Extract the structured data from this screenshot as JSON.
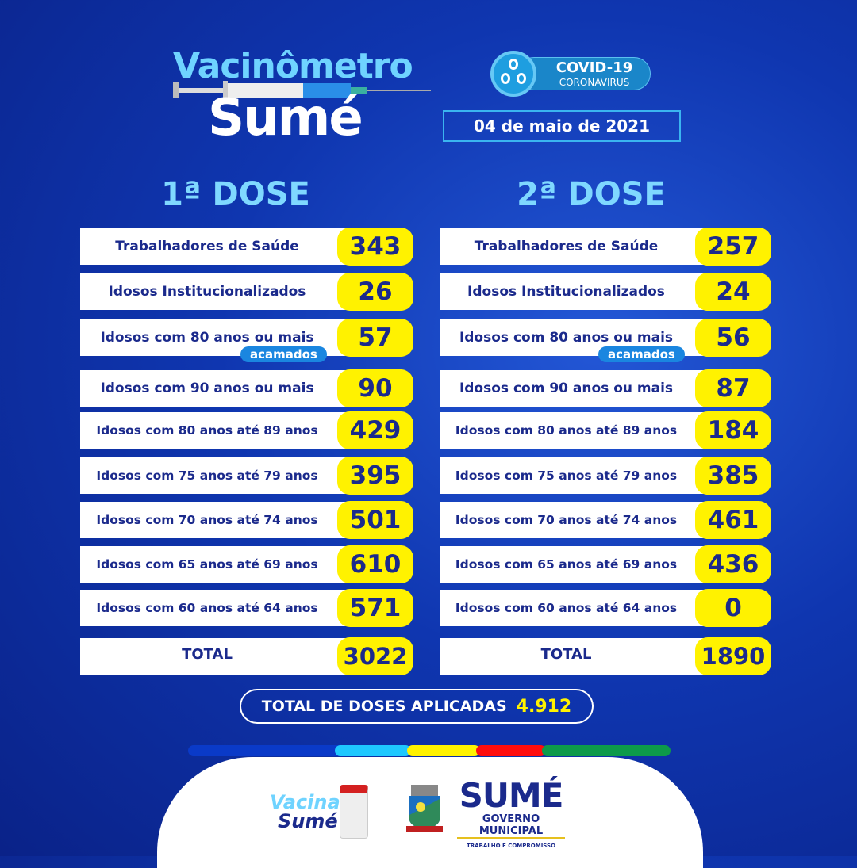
{
  "header": {
    "title_line1": "Vacinômetro",
    "title_line2": "Sumé",
    "badge_title": "COVID-19",
    "badge_subtitle": "CORONAVIRUS",
    "date": "04 de maio de 2021"
  },
  "colors": {
    "background": "#0f36b0",
    "row_text": "#1b2a8c",
    "value_pill": "#fff200",
    "heading": "#7fd8ff",
    "tag": "#1a86e0"
  },
  "dose1": {
    "heading": "1ª DOSE",
    "rows": [
      {
        "label": "Trabalhadores de Saúde",
        "value": "343"
      },
      {
        "label": "Idosos Institucionalizados",
        "value": "26"
      },
      {
        "label": "Idosos com 80 anos ou mais",
        "value": "57",
        "tag": "acamados"
      },
      {
        "label": "Idosos com 90 anos ou mais",
        "value": "90"
      },
      {
        "label": "Idosos com 80 anos até 89 anos",
        "value": "429"
      },
      {
        "label": "Idosos com 75 anos até 79 anos",
        "value": "395"
      },
      {
        "label": "Idosos com 70 anos até 74 anos",
        "value": "501"
      },
      {
        "label": "Idosos com 65 anos até 69 anos",
        "value": "610"
      },
      {
        "label": "Idosos com 60 anos até 64 anos",
        "value": "571"
      }
    ],
    "total_label": "TOTAL",
    "total": "3022"
  },
  "dose2": {
    "heading": "2ª DOSE",
    "rows": [
      {
        "label": "Trabalhadores de Saúde",
        "value": "257"
      },
      {
        "label": "Idosos Institucionalizados",
        "value": "24"
      },
      {
        "label": "Idosos com 80 anos ou mais",
        "value": "56",
        "tag": "acamados"
      },
      {
        "label": "Idosos com 90 anos ou mais",
        "value": "87"
      },
      {
        "label": "Idosos com 80 anos até 89 anos",
        "value": "184"
      },
      {
        "label": "Idosos com 75 anos até 79 anos",
        "value": "385"
      },
      {
        "label": "Idosos com 70 anos até 74 anos",
        "value": "461"
      },
      {
        "label": "Idosos com 65 anos até 69 anos",
        "value": "436"
      },
      {
        "label": "Idosos com 60 anos até 64 anos",
        "value": "0"
      }
    ],
    "total_label": "TOTAL",
    "total": "1890"
  },
  "grand_total": {
    "label": "TOTAL DE DOSES APLICADAS",
    "value": "4.912"
  },
  "footer": {
    "logo1_line1": "Vacina",
    "logo1_line2": "Sumé",
    "logo2_title": "SUMÉ",
    "logo2_subtitle": "GOVERNO MUNICIPAL",
    "logo2_motto": "TRABALHO E COMPROMISSO"
  }
}
